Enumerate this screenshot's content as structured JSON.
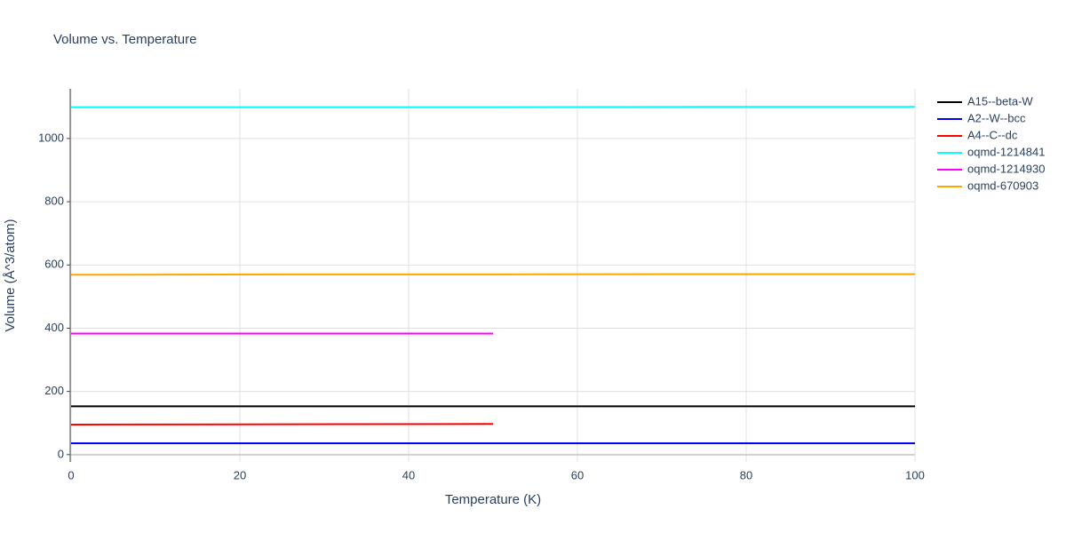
{
  "chart_data": {
    "type": "line",
    "title": "Volume vs. Temperature",
    "x_label": "Temperature (K)",
    "y_label": "Volume (Å^3/atom)",
    "x": [
      0,
      25,
      50,
      75,
      100
    ],
    "series": [
      {
        "name": "A15--beta-W",
        "color": "#000000",
        "values": [
          153,
          153,
          153,
          153,
          153
        ]
      },
      {
        "name": "A2--W--bcc",
        "color": "#0000ff",
        "values": [
          36,
          36,
          36,
          36,
          36
        ]
      },
      {
        "name": "A4--C--dc",
        "color": "#ff0000",
        "values": [
          95,
          96,
          97,
          null,
          null
        ]
      },
      {
        "name": "oqmd-1214841",
        "color": "#00ffff",
        "values": [
          1099,
          1099,
          1099,
          1100,
          1100
        ]
      },
      {
        "name": "oqmd-1214930",
        "color": "#ff00ff",
        "values": [
          383,
          383,
          383,
          null,
          null
        ]
      },
      {
        "name": "oqmd-670903",
        "color": "#ffa500",
        "values": [
          569,
          570,
          570,
          571,
          571
        ]
      }
    ],
    "xlim": [
      0,
      100
    ],
    "xticks": [
      0,
      20,
      40,
      60,
      80,
      100
    ],
    "ylim": [
      -23,
      1157
    ],
    "yticks": [
      0,
      200,
      400,
      600,
      800,
      1000
    ],
    "grid": true,
    "legend": "right"
  }
}
